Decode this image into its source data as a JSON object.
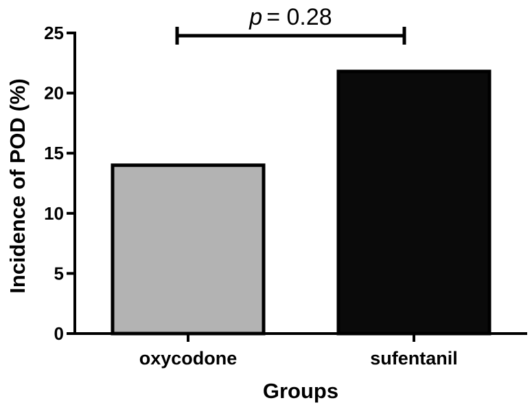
{
  "chart_data": {
    "type": "bar",
    "title": "",
    "xlabel": "Groups",
    "ylabel": "Incidence of POD (%)",
    "categories": [
      "oxycodone",
      "sufentanil"
    ],
    "values": [
      14,
      21.8
    ],
    "ylim": [
      0,
      25
    ],
    "yticks": [
      0,
      5,
      10,
      15,
      20,
      25
    ],
    "ytick_labels": [
      "0",
      "5",
      "10",
      "15",
      "20",
      "25"
    ],
    "grid": false,
    "legend": "none",
    "bar_colors": [
      "#b3b3b3",
      "#0a0a0a"
    ],
    "annotation": {
      "p_label": "p",
      "p_value": "= 0.28",
      "between": [
        "oxycodone",
        "sufentanil"
      ],
      "y": 25
    }
  }
}
